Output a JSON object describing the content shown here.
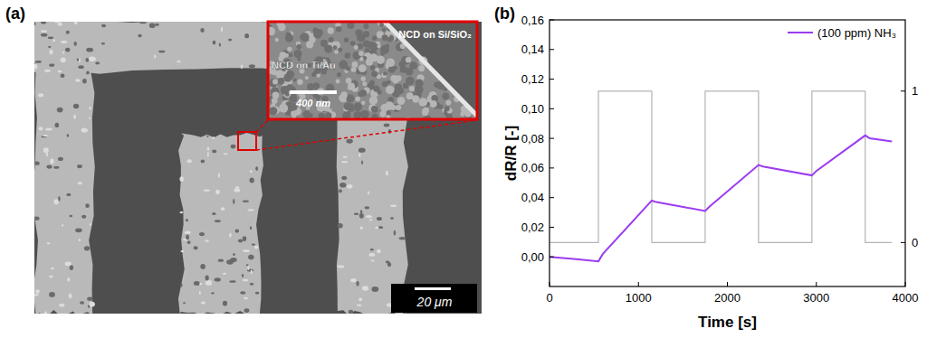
{
  "chart_data": {
    "type": "line",
    "title": "(b)",
    "x_label": "Time [s]",
    "y_label": "dR/R [-]",
    "xlim": [
      0,
      4000
    ],
    "xticks": [
      0,
      1000,
      2000,
      3000,
      4000
    ],
    "ylim": [
      -0.02,
      0.16
    ],
    "yticks": [
      {
        "value": 0,
        "label": "0,00"
      },
      {
        "value": 0.02,
        "label": "0,02"
      },
      {
        "value": 0.04,
        "label": "0,04"
      },
      {
        "value": 0.06,
        "label": "0,06"
      },
      {
        "value": 0.08,
        "label": "0,08"
      },
      {
        "value": 0.1,
        "label": "0,10"
      },
      {
        "value": 0.12,
        "label": "0,12"
      },
      {
        "value": 0.14,
        "label": "0,14"
      },
      {
        "value": 0.16,
        "label": "0,16"
      }
    ],
    "y2lim": [
      -0.29,
      1.47
    ],
    "y2ticks": [
      0,
      1
    ],
    "grid": false,
    "legend": "top-right",
    "series": [
      {
        "name": "(100 ppm) NH₃",
        "color": "#9b3cf0",
        "x": [
          0,
          300,
          550,
          600,
          1150,
          1200,
          1750,
          1800,
          2350,
          2400,
          2950,
          3000,
          3550,
          3600,
          3850
        ],
        "values": [
          0.0,
          -0.0015,
          -0.003,
          0.002,
          0.038,
          0.037,
          0.031,
          0.034,
          0.062,
          0.061,
          0.055,
          0.058,
          0.082,
          0.08,
          0.078
        ]
      },
      {
        "color": "#b4b4b4",
        "axis": "y2",
        "x": [
          0,
          550,
          550,
          1150,
          1150,
          1750,
          1750,
          2350,
          2350,
          2950,
          2950,
          3550,
          3550,
          3850
        ],
        "values": [
          0,
          0,
          1,
          1,
          0,
          0,
          1,
          1,
          0,
          0,
          1,
          1,
          0,
          0
        ]
      }
    ]
  },
  "sem_image": {
    "panel_label": "(a)",
    "scale_bar": "20 μm",
    "inset": {
      "labels": [
        "NCD on Si/SiO₂",
        "NCD on Ti/Au"
      ],
      "scale_bar": "400 nm"
    }
  }
}
